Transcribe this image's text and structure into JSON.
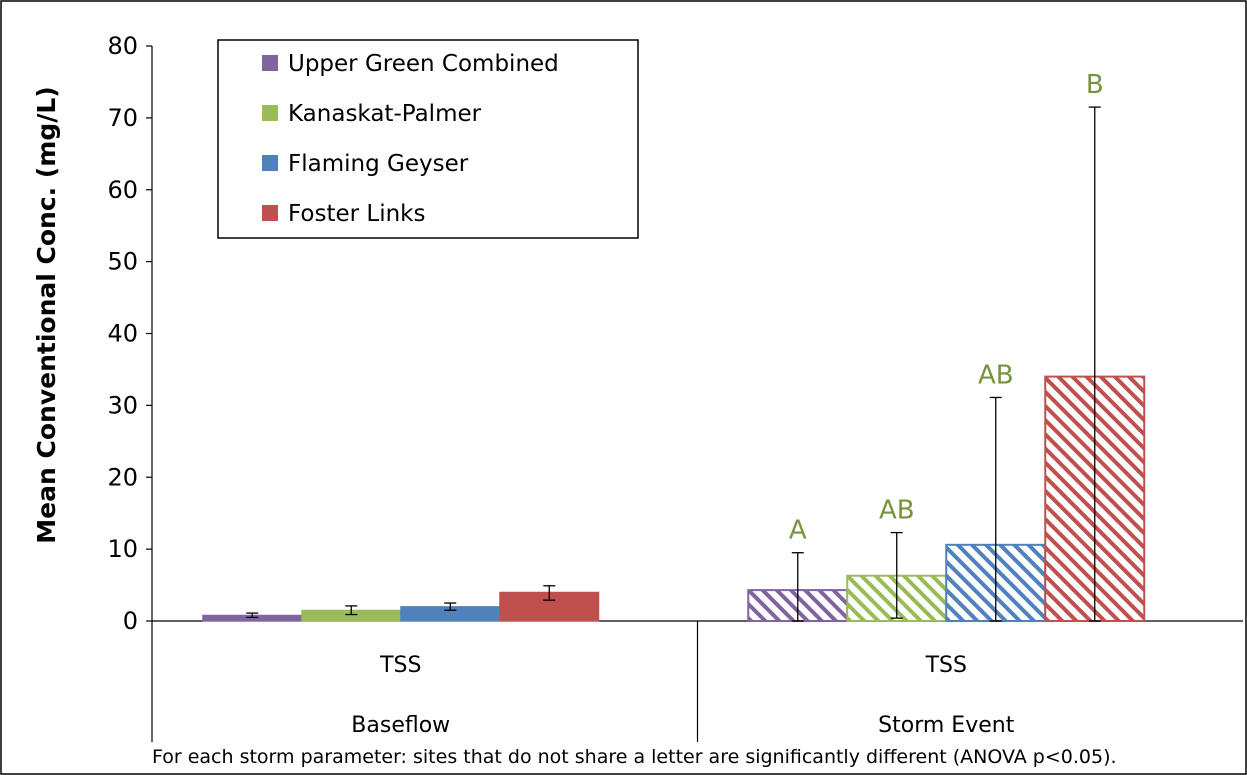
{
  "chart_data": {
    "type": "bar",
    "ylabel": "Mean Conventional Conc. (mg/L)",
    "ylim": [
      0,
      80
    ],
    "yticks": [
      0,
      10,
      20,
      30,
      40,
      50,
      60,
      70,
      80
    ],
    "groups": [
      {
        "name": "Baseflow",
        "parameter": "TSS",
        "pattern": "solid"
      },
      {
        "name": "Storm Event",
        "parameter": "TSS",
        "pattern": "hatched"
      }
    ],
    "series": [
      {
        "name": "Upper Green Combined",
        "color": "#8064A2",
        "values": [
          0.8,
          4.3
        ],
        "error_low": [
          0.5,
          0.0
        ],
        "error_high": [
          1.1,
          9.5
        ],
        "sig_labels": [
          "",
          "A"
        ]
      },
      {
        "name": "Kanaskat-Palmer",
        "color": "#9BBB59",
        "values": [
          1.5,
          6.3
        ],
        "error_low": [
          0.9,
          0.4
        ],
        "error_high": [
          2.1,
          12.3
        ],
        "sig_labels": [
          "",
          "AB"
        ]
      },
      {
        "name": "Flaming Geyser",
        "color": "#4F81BD",
        "values": [
          2.0,
          10.6
        ],
        "error_low": [
          1.5,
          0.0
        ],
        "error_high": [
          2.5,
          31.1
        ],
        "sig_labels": [
          "",
          "AB"
        ]
      },
      {
        "name": "Foster Links",
        "color": "#C0504D",
        "values": [
          4.0,
          34.0
        ],
        "error_low": [
          2.9,
          0.0
        ],
        "error_high": [
          4.9,
          71.5
        ],
        "sig_labels": [
          "",
          "B"
        ]
      }
    ],
    "sig_label_color": "#77933C",
    "legend": "top-left",
    "grid": false,
    "footnote": "For each storm parameter: sites that do not share a letter are significantly different (ANOVA p<0.05)."
  }
}
